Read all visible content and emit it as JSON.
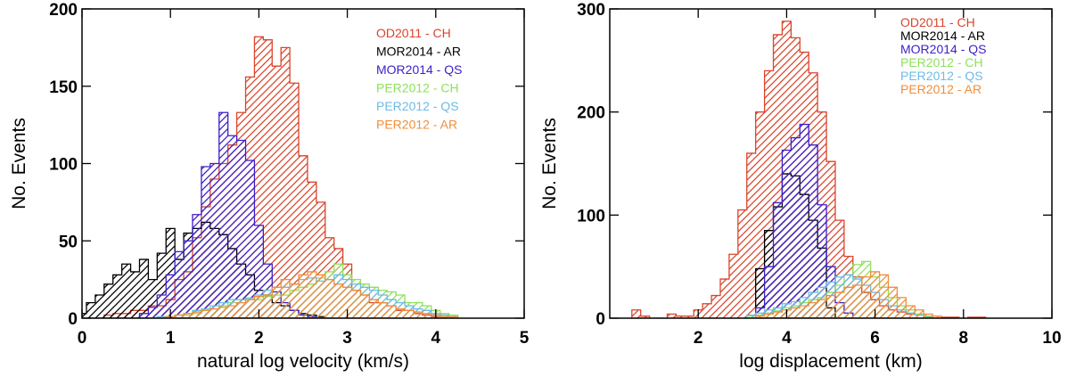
{
  "chart_data": [
    {
      "type": "histogram",
      "xlabel": "natural log velocity (km/s)",
      "ylabel": "No. Events",
      "xlim": [
        0,
        5
      ],
      "ylim": [
        0,
        200
      ],
      "xticks": [
        "0",
        "1",
        "2",
        "3",
        "4",
        "5"
      ],
      "yticks": [
        "0",
        "50",
        "100",
        "150",
        "200"
      ],
      "legend_position": "top-right",
      "series": [
        {
          "name": "OD2011  - CH",
          "color": "#d9452b",
          "hatch": "diagonal",
          "x": [
            0.1,
            0.2,
            0.3,
            0.4,
            0.5,
            0.6,
            0.7,
            0.8,
            0.9,
            1.0,
            1.1,
            1.2,
            1.3,
            1.4,
            1.5,
            1.6,
            1.7,
            1.8,
            1.9,
            2.0,
            2.1,
            2.2,
            2.3,
            2.4,
            2.5,
            2.6,
            2.7,
            2.8,
            2.9,
            3.0,
            3.1,
            3.2,
            3.3,
            3.4,
            3.5,
            3.6,
            3.7,
            3.8,
            3.9,
            4.0,
            4.1,
            4.2
          ],
          "y": [
            0,
            0,
            2,
            3,
            3,
            5,
            5,
            8,
            8,
            12,
            25,
            30,
            52,
            72,
            90,
            100,
            112,
            133,
            156,
            182,
            180,
            163,
            175,
            152,
            105,
            88,
            75,
            52,
            45,
            35,
            18,
            15,
            10,
            10,
            8,
            5,
            5,
            3,
            2,
            1,
            1,
            1
          ]
        },
        {
          "name": "MOR2014 - AR",
          "color": "#000000",
          "hatch": "diagonal",
          "x": [
            0.0,
            0.1,
            0.2,
            0.3,
            0.4,
            0.5,
            0.6,
            0.7,
            0.8,
            0.9,
            1.0,
            1.1,
            1.2,
            1.3,
            1.4,
            1.5,
            1.6,
            1.7,
            1.8,
            1.9,
            2.0,
            2.1,
            2.2,
            2.3,
            2.4,
            2.5,
            2.6,
            2.7,
            2.8
          ],
          "y": [
            3,
            10,
            15,
            22,
            28,
            35,
            30,
            38,
            25,
            42,
            58,
            38,
            55,
            58,
            62,
            58,
            54,
            45,
            35,
            28,
            18,
            15,
            10,
            8,
            5,
            3,
            2,
            1,
            0
          ]
        },
        {
          "name": "MOR2014 - QS",
          "color": "#3d1fc6",
          "hatch": "diagonal",
          "x": [
            0.7,
            0.8,
            0.9,
            1.0,
            1.1,
            1.2,
            1.3,
            1.4,
            1.5,
            1.6,
            1.7,
            1.8,
            1.9,
            2.0,
            2.1,
            2.2,
            2.3,
            2.4,
            2.5,
            2.6
          ],
          "y": [
            3,
            7,
            15,
            28,
            43,
            50,
            67,
            98,
            100,
            133,
            118,
            115,
            102,
            60,
            35,
            17,
            10,
            5,
            2,
            1
          ]
        },
        {
          "name": "PER2012 - CH",
          "color": "#8ee05a",
          "hatch": "diagonal",
          "x": [
            0.8,
            0.9,
            1.0,
            1.1,
            1.2,
            1.3,
            1.4,
            1.5,
            1.6,
            1.7,
            1.8,
            1.9,
            2.0,
            2.1,
            2.2,
            2.3,
            2.4,
            2.5,
            2.6,
            2.7,
            2.8,
            2.9,
            3.0,
            3.1,
            3.2,
            3.3,
            3.4,
            3.5,
            3.6,
            3.7,
            3.8,
            3.9,
            4.0,
            4.1,
            4.2
          ],
          "y": [
            0,
            1,
            1,
            2,
            2,
            3,
            5,
            6,
            8,
            10,
            10,
            12,
            12,
            14,
            15,
            15,
            18,
            20,
            22,
            26,
            30,
            35,
            28,
            25,
            22,
            20,
            18,
            17,
            15,
            10,
            10,
            8,
            5,
            3,
            2
          ]
        },
        {
          "name": "PER2012 - QS",
          "color": "#6dbbe6",
          "hatch": "diagonal",
          "x": [
            0.8,
            0.9,
            1.0,
            1.1,
            1.2,
            1.3,
            1.4,
            1.5,
            1.6,
            1.7,
            1.8,
            1.9,
            2.0,
            2.1,
            2.2,
            2.3,
            2.4,
            2.5,
            2.6,
            2.7,
            2.8,
            2.9,
            3.0,
            3.1,
            3.2,
            3.3,
            3.4,
            3.5,
            3.6,
            3.7,
            3.8,
            3.9,
            4.0,
            4.1,
            4.2
          ],
          "y": [
            0,
            1,
            1,
            2,
            3,
            5,
            6,
            8,
            10,
            12,
            12,
            13,
            15,
            18,
            20,
            20,
            22,
            25,
            26,
            24,
            25,
            28,
            25,
            22,
            20,
            18,
            15,
            12,
            10,
            8,
            6,
            5,
            3,
            2,
            1
          ]
        },
        {
          "name": "PER2012 - AR",
          "color": "#ef8e3a",
          "hatch": "diagonal",
          "x": [
            1.0,
            1.1,
            1.2,
            1.3,
            1.4,
            1.5,
            1.6,
            1.7,
            1.8,
            1.9,
            2.0,
            2.1,
            2.2,
            2.3,
            2.4,
            2.5,
            2.6,
            2.7,
            2.8,
            2.9,
            3.0,
            3.1,
            3.2,
            3.3,
            3.4,
            3.5,
            3.6,
            3.7,
            3.8,
            3.9,
            4.0,
            4.1,
            4.2
          ],
          "y": [
            1,
            2,
            3,
            4,
            5,
            6,
            7,
            8,
            10,
            12,
            14,
            15,
            20,
            25,
            22,
            28,
            30,
            28,
            25,
            22,
            20,
            18,
            15,
            12,
            10,
            8,
            6,
            5,
            4,
            3,
            2,
            1,
            1
          ]
        }
      ]
    },
    {
      "type": "histogram",
      "xlabel": "log displacement (km)",
      "ylabel": "No. Events",
      "xlim": [
        0,
        10
      ],
      "ylim": [
        0,
        300
      ],
      "xticks": [
        "2",
        "4",
        "6",
        "8",
        "10"
      ],
      "yticks": [
        "0",
        "100",
        "200",
        "300"
      ],
      "legend_position": "top-right",
      "series": [
        {
          "name": "OD2011  - CH",
          "color": "#d9452b",
          "hatch": "diagonal",
          "x": [
            0.6,
            0.8,
            1.0,
            1.2,
            1.4,
            1.6,
            1.8,
            2.0,
            2.2,
            2.4,
            2.6,
            2.8,
            3.0,
            3.2,
            3.4,
            3.6,
            3.8,
            4.0,
            4.2,
            4.4,
            4.6,
            4.8,
            5.0,
            5.2,
            5.4,
            5.6,
            5.8,
            6.0,
            6.2,
            6.4,
            6.6,
            6.8,
            7.0,
            7.2,
            7.4,
            7.6,
            7.8,
            8.0,
            8.2,
            8.4
          ],
          "y": [
            8,
            2,
            0,
            0,
            4,
            2,
            2,
            8,
            14,
            22,
            38,
            62,
            105,
            160,
            200,
            240,
            275,
            288,
            272,
            258,
            238,
            200,
            152,
            95,
            60,
            40,
            25,
            18,
            12,
            8,
            6,
            4,
            3,
            2,
            2,
            1,
            1,
            0,
            1,
            1
          ]
        },
        {
          "name": "MOR2014 - AR",
          "color": "#000000",
          "hatch": "diagonal",
          "x": [
            3.4,
            3.6,
            3.8,
            4.0,
            4.2,
            4.4,
            4.6,
            4.8,
            5.0
          ],
          "y": [
            48,
            85,
            108,
            140,
            138,
            120,
            95,
            68,
            10
          ]
        },
        {
          "name": "MOR2014 - QS",
          "color": "#3d1fc6",
          "hatch": "diagonal",
          "x": [
            3.4,
            3.6,
            3.8,
            4.0,
            4.2,
            4.4,
            4.6,
            4.8,
            5.0,
            5.2,
            5.4
          ],
          "y": [
            10,
            50,
            112,
            163,
            175,
            188,
            168,
            110,
            50,
            15,
            5
          ]
        },
        {
          "name": "PER2012 - CH",
          "color": "#8ee05a",
          "hatch": "diagonal",
          "x": [
            3.2,
            3.4,
            3.6,
            3.8,
            4.0,
            4.2,
            4.4,
            4.6,
            4.8,
            5.0,
            5.2,
            5.4,
            5.6,
            5.8,
            6.0,
            6.2,
            6.4,
            6.6,
            6.8,
            7.0,
            7.2
          ],
          "y": [
            2,
            3,
            5,
            7,
            10,
            12,
            15,
            18,
            20,
            25,
            32,
            42,
            52,
            55,
            40,
            30,
            20,
            12,
            8,
            4,
            2
          ]
        },
        {
          "name": "PER2012 - QS",
          "color": "#6dbbe6",
          "hatch": "diagonal",
          "x": [
            3.2,
            3.4,
            3.6,
            3.8,
            4.0,
            4.2,
            4.4,
            4.6,
            4.8,
            5.0,
            5.2,
            5.4,
            5.6,
            5.8,
            6.0,
            6.2,
            6.4,
            6.6,
            6.8,
            7.0,
            7.2
          ],
          "y": [
            3,
            5,
            8,
            10,
            14,
            16,
            20,
            25,
            30,
            35,
            40,
            42,
            38,
            32,
            25,
            18,
            12,
            8,
            5,
            3,
            1
          ]
        },
        {
          "name": "PER2012 - AR",
          "color": "#ef8e3a",
          "hatch": "diagonal",
          "x": [
            3.4,
            3.6,
            3.8,
            4.0,
            4.2,
            4.4,
            4.6,
            4.8,
            5.0,
            5.2,
            5.4,
            5.6,
            5.8,
            6.0,
            6.2,
            6.4,
            6.6,
            6.8,
            7.0,
            7.2,
            7.4
          ],
          "y": [
            2,
            4,
            6,
            8,
            10,
            12,
            15,
            18,
            22,
            25,
            30,
            32,
            40,
            45,
            42,
            30,
            20,
            12,
            8,
            4,
            2
          ]
        }
      ]
    }
  ]
}
